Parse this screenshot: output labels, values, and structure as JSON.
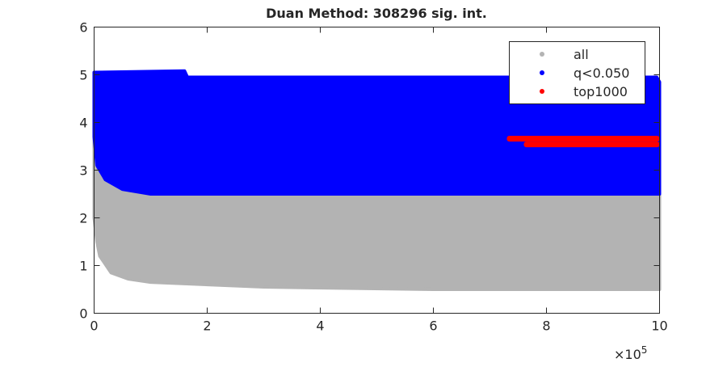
{
  "chart_data": {
    "type": "scatter",
    "title": "Duan Method: 308296 sig. int.",
    "xlabel": "",
    "ylabel": "",
    "xlim": [
      0,
      10
    ],
    "ylim": [
      0,
      6
    ],
    "x_exponent_label": "×10",
    "x_exponent": "5",
    "xticks": [
      "0",
      "2",
      "4",
      "6",
      "8",
      "10"
    ],
    "yticks": [
      "0",
      "1",
      "2",
      "3",
      "4",
      "5",
      "6"
    ],
    "grid": false,
    "legend_placement": "top-right",
    "series": [
      {
        "name": "all",
        "color": "#b3b3b3",
        "region_upper": [
          [
            0,
            3.7
          ],
          [
            0.05,
            3.1
          ],
          [
            0.2,
            2.8
          ],
          [
            0.5,
            2.6
          ],
          [
            1,
            2.5
          ],
          [
            10,
            2.5
          ]
        ],
        "region_lower": [
          [
            0,
            2.0
          ],
          [
            0.05,
            1.5
          ],
          [
            0.1,
            1.2
          ],
          [
            0.3,
            0.85
          ],
          [
            0.6,
            0.72
          ],
          [
            1,
            0.65
          ],
          [
            3,
            0.55
          ],
          [
            6,
            0.5
          ],
          [
            10,
            0.5
          ]
        ]
      },
      {
        "name": "q<0.050",
        "color": "#0000ff",
        "region_upper": [
          [
            0,
            5.05
          ],
          [
            1.6,
            5.08
          ],
          [
            1.65,
            4.95
          ],
          [
            9.95,
            4.95
          ],
          [
            10,
            4.85
          ]
        ],
        "region_lower": [
          [
            0,
            3.7
          ],
          [
            0.05,
            3.1
          ],
          [
            0.2,
            2.8
          ],
          [
            0.5,
            2.6
          ],
          [
            1,
            2.5
          ],
          [
            10,
            2.5
          ]
        ]
      },
      {
        "name": "top1000",
        "color": "#ff0000",
        "bands": [
          [
            7.3,
            10,
            3.6,
            3.72
          ],
          [
            7.6,
            10,
            3.48,
            3.6
          ]
        ]
      }
    ]
  }
}
